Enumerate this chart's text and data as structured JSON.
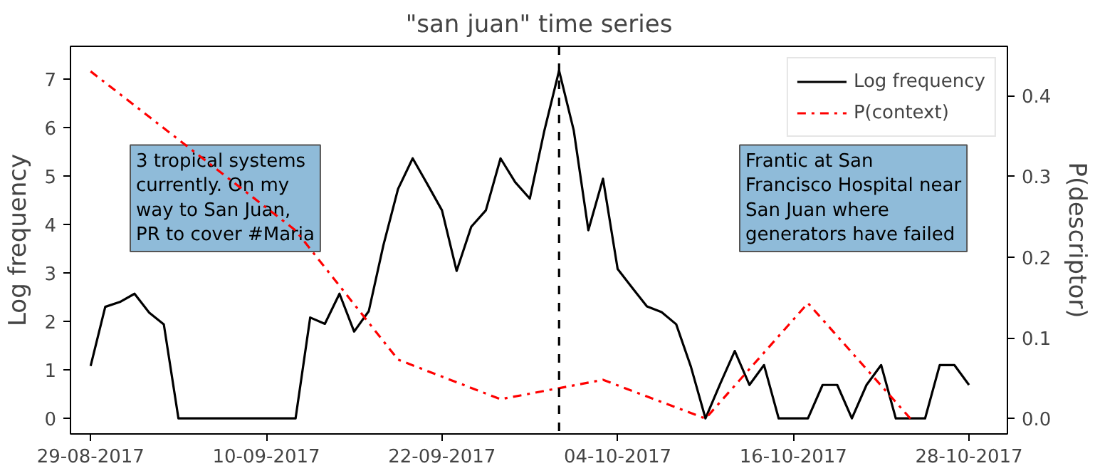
{
  "chart_data": {
    "type": "line",
    "title": "\"san juan\" time series",
    "ylabel": "Log frequency",
    "y2label": "P(descriptor)",
    "xlim": [
      "2017-08-27T15:00",
      "2017-10-30T15:00"
    ],
    "ylim": [
      -0.32,
      7.67
    ],
    "y2lim": [
      -0.019,
      0.461
    ],
    "xticks": [
      {
        "value": "2017-08-29",
        "label": "29-08-2017"
      },
      {
        "value": "2017-09-10",
        "label": "10-09-2017"
      },
      {
        "value": "2017-09-22",
        "label": "22-09-2017"
      },
      {
        "value": "2017-10-04",
        "label": "04-10-2017"
      },
      {
        "value": "2017-10-16",
        "label": "16-10-2017"
      },
      {
        "value": "2017-10-28",
        "label": "28-10-2017"
      }
    ],
    "yticks": [
      0,
      1,
      2,
      3,
      4,
      5,
      6,
      7
    ],
    "y2ticks": [
      {
        "value": 0,
        "label": "0.0"
      },
      0.1,
      0.2,
      0.3,
      0.4
    ],
    "series": [
      {
        "name": "Log frequency",
        "color": "#000000",
        "line_style": "solid",
        "x": [
          "2017-08-29",
          "2017-08-30",
          "2017-08-31",
          "2017-09-01",
          "2017-09-02",
          "2017-09-03",
          "2017-09-04",
          "2017-09-05",
          "2017-09-06",
          "2017-09-07",
          "2017-09-08",
          "2017-09-09",
          "2017-09-10",
          "2017-09-11",
          "2017-09-12",
          "2017-09-13",
          "2017-09-14",
          "2017-09-15",
          "2017-09-16",
          "2017-09-17",
          "2017-09-18",
          "2017-09-19",
          "2017-09-20",
          "2017-09-21",
          "2017-09-22",
          "2017-09-23",
          "2017-09-24",
          "2017-09-25",
          "2017-09-26",
          "2017-09-27",
          "2017-09-28",
          "2017-09-29",
          "2017-09-30",
          "2017-10-01",
          "2017-10-02",
          "2017-10-03",
          "2017-10-04",
          "2017-10-05",
          "2017-10-06",
          "2017-10-07",
          "2017-10-08",
          "2017-10-09",
          "2017-10-10",
          "2017-10-11",
          "2017-10-12",
          "2017-10-13",
          "2017-10-14",
          "2017-10-15",
          "2017-10-16",
          "2017-10-17",
          "2017-10-18",
          "2017-10-19",
          "2017-10-20",
          "2017-10-21",
          "2017-10-22",
          "2017-10-23",
          "2017-10-24",
          "2017-10-25",
          "2017-10-26",
          "2017-10-27",
          "2017-10-28"
        ],
        "values": [
          1.08,
          2.3,
          2.4,
          2.57,
          2.18,
          1.94,
          0,
          0,
          0,
          0,
          0,
          0,
          0,
          0,
          0,
          2.08,
          1.95,
          2.57,
          1.79,
          2.21,
          3.57,
          4.73,
          5.36,
          4.83,
          4.29,
          3.04,
          3.95,
          4.29,
          5.36,
          4.87,
          4.53,
          5.94,
          7.17,
          5.94,
          3.88,
          4.94,
          3.08,
          2.69,
          2.31,
          2.19,
          1.94,
          1.07,
          0,
          0.71,
          1.39,
          0.69,
          1.1,
          0,
          0,
          0,
          0.69,
          0.69,
          0,
          0.69,
          1.1,
          0,
          0,
          0,
          1.1,
          1.1,
          0.69
        ]
      },
      {
        "name": "P(context)",
        "color": "#ff0000",
        "line_style": "dashdot",
        "axis": "y2",
        "x": [
          "2017-08-29",
          "2017-09-12",
          "2017-09-19",
          "2017-09-26",
          "2017-10-03",
          "2017-10-10",
          "2017-10-17",
          "2017-10-24"
        ],
        "values": [
          0.43,
          0.233,
          0.073,
          0.024,
          0.048,
          0,
          0.143,
          0
        ]
      }
    ],
    "ref_lines": [
      {
        "axis": "x",
        "value": "2017-09-30",
        "color": "#000000",
        "line_style": "dashed"
      }
    ],
    "annotations": [
      "3 tropical systems currently. On my way to San Juan, PR to cover #Maria",
      "Frantic at San Francisco Hospital near San Juan where generators have failed"
    ],
    "grid": false,
    "legend": "top right"
  }
}
